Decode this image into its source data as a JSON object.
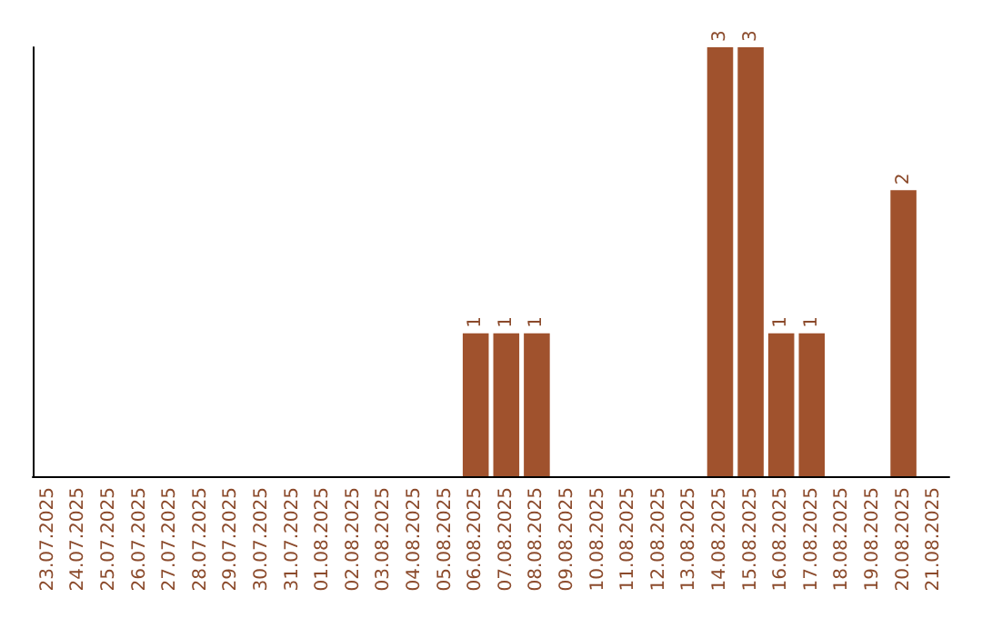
{
  "chart_data": {
    "type": "bar",
    "categories": [
      "23.07.2025",
      "24.07.2025",
      "25.07.2025",
      "26.07.2025",
      "27.07.2025",
      "28.07.2025",
      "29.07.2025",
      "30.07.2025",
      "31.07.2025",
      "01.08.2025",
      "02.08.2025",
      "03.08.2025",
      "04.08.2025",
      "05.08.2025",
      "06.08.2025",
      "07.08.2025",
      "08.08.2025",
      "09.08.2025",
      "10.08.2025",
      "11.08.2025",
      "12.08.2025",
      "13.08.2025",
      "14.08.2025",
      "15.08.2025",
      "16.08.2025",
      "17.08.2025",
      "18.08.2025",
      "19.08.2025",
      "20.08.2025",
      "21.08.2025"
    ],
    "values": [
      null,
      null,
      null,
      null,
      null,
      null,
      null,
      null,
      null,
      null,
      null,
      null,
      null,
      null,
      1,
      1,
      1,
      null,
      null,
      null,
      null,
      null,
      3,
      3,
      1,
      1,
      null,
      null,
      2,
      null
    ],
    "data_labels": true,
    "color": "#a0522d",
    "ylim": [
      0,
      3
    ],
    "tick_labels": "x"
  }
}
